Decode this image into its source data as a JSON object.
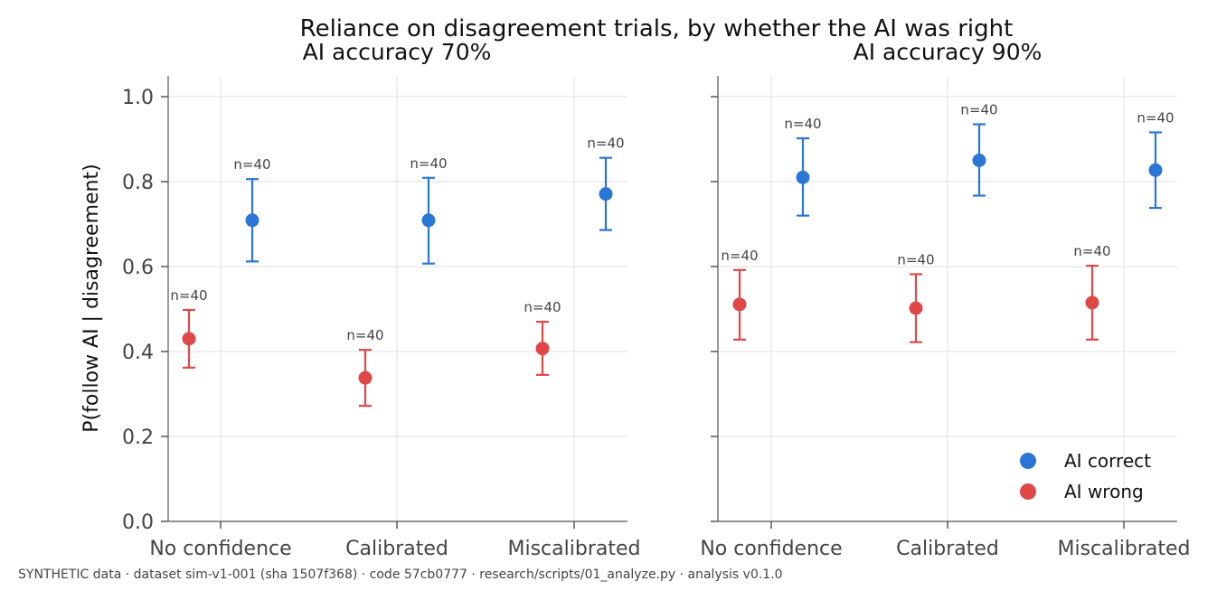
{
  "chart_data": {
    "type": "scatter",
    "title": "Reliance on disagreement trials, by whether the AI was right",
    "ylabel": "P(follow AI | disagreement)",
    "ylim": [
      0,
      1.05
    ],
    "yticks": [
      0.0,
      0.2,
      0.4,
      0.6,
      0.8,
      1.0
    ],
    "categories": [
      "No confidence",
      "Calibrated",
      "Miscalibrated"
    ],
    "grid": true,
    "legend_position": "lower-right",
    "panels": [
      {
        "subtitle": "AI accuracy 70%",
        "series": [
          {
            "name": "AI wrong",
            "color": "#e04848",
            "values": [
              0.43,
              0.338,
              0.407
            ],
            "lower": [
              0.362,
              0.272,
              0.345
            ],
            "upper": [
              0.498,
              0.404,
              0.47
            ],
            "n": [
              "n=40",
              "n=40",
              "n=40"
            ]
          },
          {
            "name": "AI correct",
            "color": "#2a76d6",
            "values": [
              0.709,
              0.709,
              0.771
            ],
            "lower": [
              0.612,
              0.607,
              0.686
            ],
            "upper": [
              0.806,
              0.809,
              0.856
            ],
            "n": [
              "n=40",
              "n=40",
              "n=40"
            ]
          }
        ]
      },
      {
        "subtitle": "AI accuracy 90%",
        "series": [
          {
            "name": "AI wrong",
            "color": "#e04848",
            "values": [
              0.511,
              0.502,
              0.515
            ],
            "lower": [
              0.428,
              0.422,
              0.428
            ],
            "upper": [
              0.592,
              0.582,
              0.602
            ],
            "n": [
              "n=40",
              "n=40",
              "n=40"
            ]
          },
          {
            "name": "AI correct",
            "color": "#2a76d6",
            "values": [
              0.81,
              0.85,
              0.827
            ],
            "lower": [
              0.72,
              0.767,
              0.738
            ],
            "upper": [
              0.902,
              0.935,
              0.916
            ],
            "n": [
              "n=40",
              "n=40",
              "n=40"
            ]
          }
        ]
      }
    ],
    "legend": [
      {
        "label": "AI correct",
        "color": "#2a76d6"
      },
      {
        "label": "AI wrong",
        "color": "#e04848"
      }
    ]
  },
  "footer": "SYNTHETIC data · dataset sim-v1-001 (sha 1507f368) · code 57cb0777 · research/scripts/01_analyze.py · analysis v0.1.0"
}
